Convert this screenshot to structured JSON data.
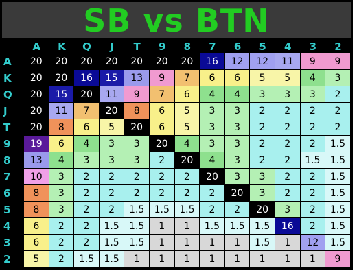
{
  "title": "SB vs BTN",
  "columns": [
    "A",
    "K",
    "Q",
    "J",
    "T",
    "9",
    "8",
    "7",
    "6",
    "5",
    "4",
    "3",
    "2"
  ],
  "rows": [
    {
      "label": "A",
      "cells": [
        {
          "v": "20",
          "bg": "#000000"
        },
        {
          "v": "20",
          "bg": "#000000"
        },
        {
          "v": "20",
          "bg": "#000000"
        },
        {
          "v": "20",
          "bg": "#000000"
        },
        {
          "v": "20",
          "bg": "#000000"
        },
        {
          "v": "20",
          "bg": "#000000"
        },
        {
          "v": "20",
          "bg": "#000000"
        },
        {
          "v": "16",
          "bg": "#0a0a96"
        },
        {
          "v": "12",
          "bg": "#a0a0f0"
        },
        {
          "v": "12",
          "bg": "#a0a0f0"
        },
        {
          "v": "11",
          "bg": "#a8a8f0"
        },
        {
          "v": "9",
          "bg": "#f09ad0"
        },
        {
          "v": "9",
          "bg": "#f09ad0"
        }
      ]
    },
    {
      "label": "K",
      "cells": [
        {
          "v": "20",
          "bg": "#000000"
        },
        {
          "v": "20",
          "bg": "#000000"
        },
        {
          "v": "16",
          "bg": "#0a0a96"
        },
        {
          "v": "15",
          "bg": "#1a1aa8"
        },
        {
          "v": "13",
          "bg": "#9a9aec"
        },
        {
          "v": "9",
          "bg": "#f09ad0"
        },
        {
          "v": "7",
          "bg": "#f2c070"
        },
        {
          "v": "6",
          "bg": "#f8f08a"
        },
        {
          "v": "6",
          "bg": "#f8f08a"
        },
        {
          "v": "5",
          "bg": "#f8f5a8"
        },
        {
          "v": "5",
          "bg": "#f8f5a8"
        },
        {
          "v": "4",
          "bg": "#8ee08e"
        },
        {
          "v": "3",
          "bg": "#b4f0b4"
        }
      ]
    },
    {
      "label": "Q",
      "cells": [
        {
          "v": "20",
          "bg": "#000000"
        },
        {
          "v": "15",
          "bg": "#1a1aa8"
        },
        {
          "v": "20",
          "bg": "#000000"
        },
        {
          "v": "11",
          "bg": "#a8a8f0"
        },
        {
          "v": "9",
          "bg": "#f09ad0"
        },
        {
          "v": "7",
          "bg": "#f2c070"
        },
        {
          "v": "6",
          "bg": "#f8f08a"
        },
        {
          "v": "4",
          "bg": "#8ee08e"
        },
        {
          "v": "4",
          "bg": "#8ee08e"
        },
        {
          "v": "3",
          "bg": "#b4f0b4"
        },
        {
          "v": "3",
          "bg": "#b4f0b4"
        },
        {
          "v": "3",
          "bg": "#b4f0b4"
        },
        {
          "v": "2",
          "bg": "#a8f0ee"
        }
      ]
    },
    {
      "label": "J",
      "cells": [
        {
          "v": "20",
          "bg": "#000000"
        },
        {
          "v": "11",
          "bg": "#a8a8f0"
        },
        {
          "v": "7",
          "bg": "#f2c070"
        },
        {
          "v": "20",
          "bg": "#000000"
        },
        {
          "v": "8",
          "bg": "#f0925a"
        },
        {
          "v": "6",
          "bg": "#f8f08a"
        },
        {
          "v": "5",
          "bg": "#f8f5a8"
        },
        {
          "v": "3",
          "bg": "#b4f0b4"
        },
        {
          "v": "3",
          "bg": "#b4f0b4"
        },
        {
          "v": "2",
          "bg": "#a8f0ee"
        },
        {
          "v": "2",
          "bg": "#a8f0ee"
        },
        {
          "v": "2",
          "bg": "#a8f0ee"
        },
        {
          "v": "2",
          "bg": "#a8f0ee"
        }
      ]
    },
    {
      "label": "T",
      "cells": [
        {
          "v": "20",
          "bg": "#000000"
        },
        {
          "v": "8",
          "bg": "#f0925a"
        },
        {
          "v": "6",
          "bg": "#f8f08a"
        },
        {
          "v": "5",
          "bg": "#f8f5a8"
        },
        {
          "v": "20",
          "bg": "#000000"
        },
        {
          "v": "6",
          "bg": "#f8f08a"
        },
        {
          "v": "5",
          "bg": "#f8f5a8"
        },
        {
          "v": "3",
          "bg": "#b4f0b4"
        },
        {
          "v": "3",
          "bg": "#b4f0b4"
        },
        {
          "v": "2",
          "bg": "#a8f0ee"
        },
        {
          "v": "2",
          "bg": "#a8f0ee"
        },
        {
          "v": "2",
          "bg": "#a8f0ee"
        },
        {
          "v": "2",
          "bg": "#a8f0ee"
        }
      ]
    },
    {
      "label": "9",
      "cells": [
        {
          "v": "19",
          "bg": "#5a1a9a"
        },
        {
          "v": "6",
          "bg": "#f8f08a"
        },
        {
          "v": "4",
          "bg": "#8ee08e"
        },
        {
          "v": "3",
          "bg": "#b4f0b4"
        },
        {
          "v": "3",
          "bg": "#b4f0b4"
        },
        {
          "v": "20",
          "bg": "#000000"
        },
        {
          "v": "4",
          "bg": "#8ee08e"
        },
        {
          "v": "3",
          "bg": "#b4f0b4"
        },
        {
          "v": "3",
          "bg": "#b4f0b4"
        },
        {
          "v": "2",
          "bg": "#a8f0ee"
        },
        {
          "v": "2",
          "bg": "#a8f0ee"
        },
        {
          "v": "2",
          "bg": "#a8f0ee"
        },
        {
          "v": "1.5",
          "bg": "#d8f8f8"
        }
      ]
    },
    {
      "label": "8",
      "cells": [
        {
          "v": "13",
          "bg": "#9a9aec"
        },
        {
          "v": "4",
          "bg": "#8ee08e"
        },
        {
          "v": "3",
          "bg": "#b4f0b4"
        },
        {
          "v": "3",
          "bg": "#b4f0b4"
        },
        {
          "v": "3",
          "bg": "#b4f0b4"
        },
        {
          "v": "2",
          "bg": "#a8f0ee"
        },
        {
          "v": "20",
          "bg": "#000000"
        },
        {
          "v": "4",
          "bg": "#8ee08e"
        },
        {
          "v": "3",
          "bg": "#b4f0b4"
        },
        {
          "v": "2",
          "bg": "#a8f0ee"
        },
        {
          "v": "2",
          "bg": "#a8f0ee"
        },
        {
          "v": "1.5",
          "bg": "#d8f8f8"
        },
        {
          "v": "1.5",
          "bg": "#d8f8f8"
        }
      ]
    },
    {
      "label": "7",
      "cells": [
        {
          "v": "10",
          "bg": "#f0a0e8"
        },
        {
          "v": "3",
          "bg": "#b4f0b4"
        },
        {
          "v": "2",
          "bg": "#a8f0ee"
        },
        {
          "v": "2",
          "bg": "#a8f0ee"
        },
        {
          "v": "2",
          "bg": "#a8f0ee"
        },
        {
          "v": "2",
          "bg": "#a8f0ee"
        },
        {
          "v": "2",
          "bg": "#a8f0ee"
        },
        {
          "v": "20",
          "bg": "#000000"
        },
        {
          "v": "3",
          "bg": "#b4f0b4"
        },
        {
          "v": "3",
          "bg": "#b4f0b4"
        },
        {
          "v": "2",
          "bg": "#a8f0ee"
        },
        {
          "v": "2",
          "bg": "#a8f0ee"
        },
        {
          "v": "1.5",
          "bg": "#d8f8f8"
        }
      ]
    },
    {
      "label": "6",
      "cells": [
        {
          "v": "8",
          "bg": "#f0925a"
        },
        {
          "v": "3",
          "bg": "#b4f0b4"
        },
        {
          "v": "2",
          "bg": "#a8f0ee"
        },
        {
          "v": "2",
          "bg": "#a8f0ee"
        },
        {
          "v": "2",
          "bg": "#a8f0ee"
        },
        {
          "v": "2",
          "bg": "#a8f0ee"
        },
        {
          "v": "2",
          "bg": "#a8f0ee"
        },
        {
          "v": "2",
          "bg": "#a8f0ee"
        },
        {
          "v": "20",
          "bg": "#000000"
        },
        {
          "v": "3",
          "bg": "#b4f0b4"
        },
        {
          "v": "2",
          "bg": "#a8f0ee"
        },
        {
          "v": "2",
          "bg": "#a8f0ee"
        },
        {
          "v": "1.5",
          "bg": "#d8f8f8"
        }
      ]
    },
    {
      "label": "5",
      "cells": [
        {
          "v": "8",
          "bg": "#f0925a"
        },
        {
          "v": "3",
          "bg": "#b4f0b4"
        },
        {
          "v": "2",
          "bg": "#a8f0ee"
        },
        {
          "v": "2",
          "bg": "#a8f0ee"
        },
        {
          "v": "1.5",
          "bg": "#d8f8f8"
        },
        {
          "v": "1.5",
          "bg": "#d8f8f8"
        },
        {
          "v": "1.5",
          "bg": "#d8f8f8"
        },
        {
          "v": "2",
          "bg": "#a8f0ee"
        },
        {
          "v": "2",
          "bg": "#a8f0ee"
        },
        {
          "v": "20",
          "bg": "#000000"
        },
        {
          "v": "3",
          "bg": "#b4f0b4"
        },
        {
          "v": "2",
          "bg": "#a8f0ee"
        },
        {
          "v": "1.5",
          "bg": "#d8f8f8"
        }
      ]
    },
    {
      "label": "4",
      "cells": [
        {
          "v": "6",
          "bg": "#f8f08a"
        },
        {
          "v": "2",
          "bg": "#a8f0ee"
        },
        {
          "v": "2",
          "bg": "#a8f0ee"
        },
        {
          "v": "1.5",
          "bg": "#d8f8f8"
        },
        {
          "v": "1.5",
          "bg": "#d8f8f8"
        },
        {
          "v": "1",
          "bg": "#d8d8d8"
        },
        {
          "v": "1",
          "bg": "#d8d8d8"
        },
        {
          "v": "1.5",
          "bg": "#d8f8f8"
        },
        {
          "v": "1.5",
          "bg": "#d8f8f8"
        },
        {
          "v": "1.5",
          "bg": "#d8f8f8"
        },
        {
          "v": "16",
          "bg": "#0a0a96"
        },
        {
          "v": "2",
          "bg": "#a8f0ee"
        },
        {
          "v": "1.5",
          "bg": "#d8f8f8"
        }
      ]
    },
    {
      "label": "3",
      "cells": [
        {
          "v": "6",
          "bg": "#f8f08a"
        },
        {
          "v": "2",
          "bg": "#a8f0ee"
        },
        {
          "v": "2",
          "bg": "#a8f0ee"
        },
        {
          "v": "1.5",
          "bg": "#d8f8f8"
        },
        {
          "v": "1.5",
          "bg": "#d8f8f8"
        },
        {
          "v": "1",
          "bg": "#d8d8d8"
        },
        {
          "v": "1",
          "bg": "#d8d8d8"
        },
        {
          "v": "1",
          "bg": "#d8d8d8"
        },
        {
          "v": "1",
          "bg": "#d8d8d8"
        },
        {
          "v": "1.5",
          "bg": "#d8f8f8"
        },
        {
          "v": "1",
          "bg": "#d8d8d8"
        },
        {
          "v": "12",
          "bg": "#a0a0f0"
        },
        {
          "v": "1.5",
          "bg": "#d8f8f8"
        }
      ]
    },
    {
      "label": "2",
      "cells": [
        {
          "v": "5",
          "bg": "#f8f5a8"
        },
        {
          "v": "2",
          "bg": "#a8f0ee"
        },
        {
          "v": "1.5",
          "bg": "#d8f8f8"
        },
        {
          "v": "1.5",
          "bg": "#d8f8f8"
        },
        {
          "v": "1",
          "bg": "#d8d8d8"
        },
        {
          "v": "1",
          "bg": "#d8d8d8"
        },
        {
          "v": "1",
          "bg": "#d8d8d8"
        },
        {
          "v": "1",
          "bg": "#d8d8d8"
        },
        {
          "v": "1",
          "bg": "#d8d8d8"
        },
        {
          "v": "1",
          "bg": "#d8d8d8"
        },
        {
          "v": "1",
          "bg": "#d8d8d8"
        },
        {
          "v": "1",
          "bg": "#d8d8d8"
        },
        {
          "v": "9",
          "bg": "#f09ad0"
        }
      ]
    }
  ]
}
